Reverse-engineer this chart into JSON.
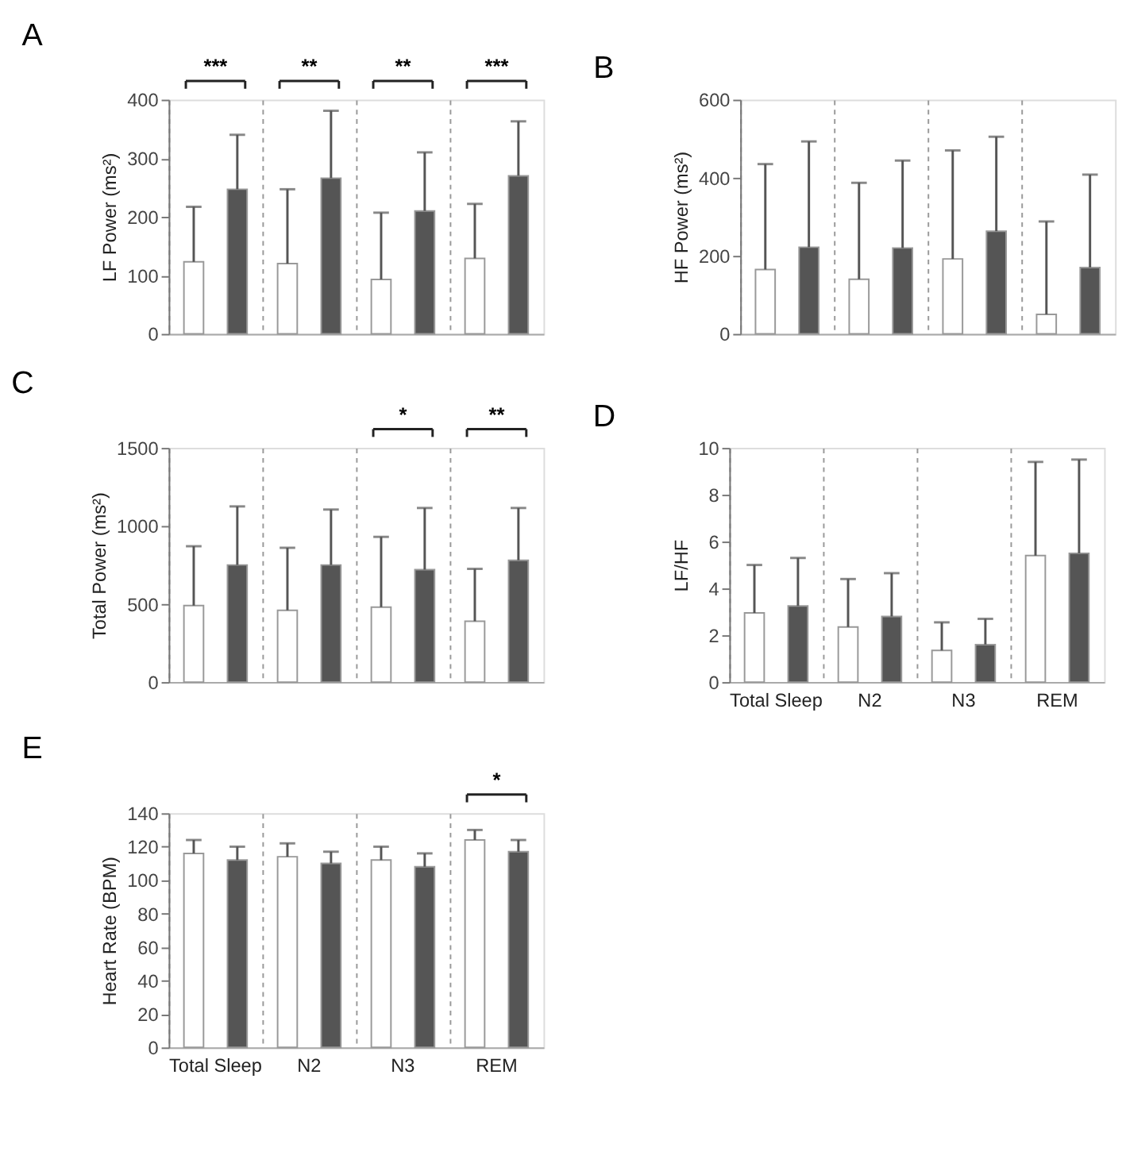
{
  "chart_data": [
    {
      "type": "bar",
      "title": "A",
      "ylabel": "LF Power (ms²)",
      "categories": [
        null,
        null,
        null,
        null
      ],
      "series": [
        {
          "color": "#ffffff",
          "values": [
            123,
            120,
            93,
            129
          ],
          "errors": [
            [
              123,
              217
            ],
            [
              120,
              247
            ],
            [
              93,
              207
            ],
            [
              129,
              222
            ]
          ]
        },
        {
          "color": "#555555",
          "values": [
            247,
            266,
            210,
            270
          ],
          "errors": [
            [
              247,
              340
            ],
            [
              266,
              381
            ],
            [
              210,
              310
            ],
            [
              270,
              363
            ]
          ]
        }
      ],
      "ylim": [
        0,
        400
      ],
      "yticks": [
        0,
        100,
        200,
        300,
        400
      ],
      "grid": "x",
      "tick_labels": "y",
      "legend": false,
      "annotations": [
        "***",
        "**",
        "**",
        "***"
      ]
    },
    {
      "type": "bar",
      "title": "B",
      "ylabel": "HF Power (ms²)",
      "categories": [
        null,
        null,
        null,
        null
      ],
      "series": [
        {
          "color": "#ffffff",
          "values": [
            165,
            140,
            192,
            50
          ],
          "errors": [
            [
              165,
              435
            ],
            [
              140,
              387
            ],
            [
              192,
              470
            ],
            [
              50,
              288
            ]
          ]
        },
        {
          "color": "#555555",
          "values": [
            222,
            220,
            263,
            170
          ],
          "errors": [
            [
              222,
              493
            ],
            [
              220,
              444
            ],
            [
              263,
              505
            ],
            [
              170,
              408
            ]
          ]
        }
      ],
      "ylim": [
        0,
        600
      ],
      "yticks": [
        0,
        200,
        400,
        600
      ],
      "grid": "x",
      "tick_labels": "y",
      "legend": false
    },
    {
      "type": "bar",
      "title": "C",
      "ylabel": "Total Power (ms²)",
      "categories": [
        null,
        null,
        null,
        null
      ],
      "series": [
        {
          "color": "#ffffff",
          "values": [
            490,
            460,
            480,
            390
          ],
          "errors": [
            [
              490,
              870
            ],
            [
              460,
              860
            ],
            [
              480,
              930
            ],
            [
              390,
              725
            ]
          ]
        },
        {
          "color": "#555555",
          "values": [
            750,
            750,
            720,
            780
          ],
          "errors": [
            [
              750,
              1125
            ],
            [
              750,
              1105
            ],
            [
              720,
              1115
            ],
            [
              780,
              1115
            ]
          ]
        }
      ],
      "ylim": [
        0,
        1500
      ],
      "yticks": [
        0,
        500,
        1000,
        1500
      ],
      "grid": "x",
      "tick_labels": "y",
      "legend": false,
      "annotations": [
        "*",
        "**"
      ]
    },
    {
      "type": "bar",
      "title": "D",
      "ylabel": "LF/HF",
      "categories": [
        "Total  Sleep",
        "N2",
        "N3",
        "REM"
      ],
      "series": [
        {
          "color": "#ffffff",
          "values": [
            2.95,
            2.35,
            1.35,
            5.4
          ],
          "errors": [
            [
              2.95,
              5.0
            ],
            [
              2.35,
              4.4
            ],
            [
              1.35,
              2.55
            ],
            [
              5.4,
              9.4
            ]
          ]
        },
        {
          "color": "#555555",
          "values": [
            3.25,
            2.8,
            1.6,
            5.5
          ],
          "errors": [
            [
              3.25,
              5.3
            ],
            [
              2.8,
              4.65
            ],
            [
              1.6,
              2.7
            ],
            [
              5.5,
              9.5
            ]
          ]
        }
      ],
      "ylim": [
        0,
        10
      ],
      "yticks": [
        0,
        2,
        4,
        6,
        8,
        10
      ],
      "grid": "x",
      "legend": false
    },
    {
      "type": "bar",
      "title": "E",
      "ylabel": "Heart Rate (BPM)",
      "categories": [
        "Total  Sleep",
        "N2",
        "N3",
        "REM"
      ],
      "series": [
        {
          "color": "#ffffff",
          "values": [
            116,
            114,
            112,
            124
          ],
          "errors": [
            [
              116,
              124
            ],
            [
              114,
              122
            ],
            [
              112,
              120
            ],
            [
              124,
              130
            ]
          ]
        },
        {
          "color": "#555555",
          "values": [
            112,
            110,
            108,
            117
          ],
          "errors": [
            [
              112,
              120
            ],
            [
              110,
              117
            ],
            [
              108,
              116
            ],
            [
              117,
              124
            ]
          ]
        }
      ],
      "ylim": [
        0,
        140
      ],
      "yticks": [
        0,
        20,
        40,
        60,
        80,
        100,
        120,
        140
      ],
      "grid": "x",
      "legend": false,
      "annotations": [
        "*"
      ]
    }
  ]
}
